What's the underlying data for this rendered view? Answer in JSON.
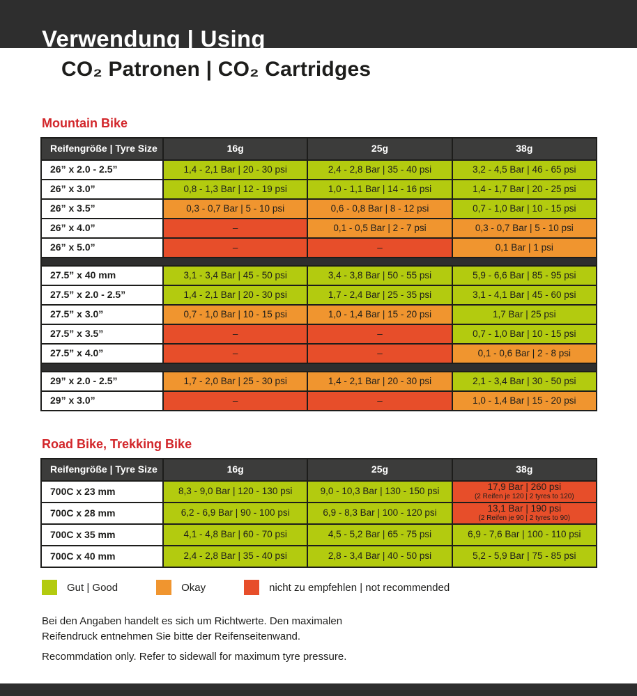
{
  "header": {
    "title": "Verwendung | Using",
    "subtitle": "CO₂ Patronen | CO₂ Cartridges"
  },
  "colors": {
    "good": "#b3cb0f",
    "okay": "#f0952f",
    "bad": "#e74e2a",
    "heading": "#d2262a",
    "band_dark": "#2e2e2e",
    "table_header": "#3c3c3b"
  },
  "tables": [
    {
      "title": "Mountain Bike",
      "columns": [
        "Reifengröße | Tyre Size",
        "16g",
        "25g",
        "38g"
      ],
      "groups": [
        {
          "rows": [
            {
              "size": "26” x 2.0 - 2.5”",
              "cells": [
                {
                  "text": "1,4 - 2,1 Bar | 20 - 30 psi",
                  "status": "good"
                },
                {
                  "text": "2,4 - 2,8 Bar | 35 - 40 psi",
                  "status": "good"
                },
                {
                  "text": "3,2 - 4,5 Bar | 46 - 65 psi",
                  "status": "good"
                }
              ]
            },
            {
              "size": "26” x 3.0”",
              "cells": [
                {
                  "text": "0,8 - 1,3 Bar | 12 - 19 psi",
                  "status": "good"
                },
                {
                  "text": "1,0 - 1,1 Bar | 14 - 16 psi",
                  "status": "good"
                },
                {
                  "text": "1,4 - 1,7 Bar | 20 - 25 psi",
                  "status": "good"
                }
              ]
            },
            {
              "size": "26” x 3.5”",
              "cells": [
                {
                  "text": "0,3 - 0,7 Bar | 5 - 10 psi",
                  "status": "okay"
                },
                {
                  "text": "0,6 - 0,8 Bar | 8 - 12 psi",
                  "status": "okay"
                },
                {
                  "text": "0,7 - 1,0 Bar | 10 - 15 psi",
                  "status": "good"
                }
              ]
            },
            {
              "size": "26” x 4.0”",
              "cells": [
                {
                  "text": "–",
                  "status": "bad"
                },
                {
                  "text": "0,1 - 0,5 Bar | 2 - 7 psi",
                  "status": "okay"
                },
                {
                  "text": "0,3 - 0,7 Bar | 5 - 10 psi",
                  "status": "okay"
                }
              ]
            },
            {
              "size": "26” x 5.0”",
              "cells": [
                {
                  "text": "–",
                  "status": "bad"
                },
                {
                  "text": "–",
                  "status": "bad"
                },
                {
                  "text": "0,1 Bar | 1 psi",
                  "status": "okay"
                }
              ]
            }
          ]
        },
        {
          "rows": [
            {
              "size": "27.5” x 40 mm",
              "cells": [
                {
                  "text": "3,1 - 3,4 Bar | 45 - 50 psi",
                  "status": "good"
                },
                {
                  "text": "3,4 - 3,8 Bar | 50 - 55 psi",
                  "status": "good"
                },
                {
                  "text": "5,9 - 6,6 Bar | 85 - 95 psi",
                  "status": "good"
                }
              ]
            },
            {
              "size": "27.5” x 2.0 - 2.5”",
              "cells": [
                {
                  "text": "1,4 - 2,1 Bar | 20 - 30 psi",
                  "status": "good"
                },
                {
                  "text": "1,7 - 2,4 Bar | 25 - 35 psi",
                  "status": "good"
                },
                {
                  "text": "3,1 - 4,1 Bar | 45 - 60 psi",
                  "status": "good"
                }
              ]
            },
            {
              "size": "27.5” x 3.0”",
              "cells": [
                {
                  "text": "0,7 - 1,0 Bar | 10 - 15 psi",
                  "status": "okay"
                },
                {
                  "text": "1,0 - 1,4 Bar | 15 - 20 psi",
                  "status": "okay"
                },
                {
                  "text": "1,7 Bar | 25 psi",
                  "status": "good"
                }
              ]
            },
            {
              "size": "27.5” x 3.5”",
              "cells": [
                {
                  "text": "–",
                  "status": "bad"
                },
                {
                  "text": "–",
                  "status": "bad"
                },
                {
                  "text": "0,7 - 1,0 Bar | 10 - 15 psi",
                  "status": "good"
                }
              ]
            },
            {
              "size": "27.5” x 4.0”",
              "cells": [
                {
                  "text": "–",
                  "status": "bad"
                },
                {
                  "text": "–",
                  "status": "bad"
                },
                {
                  "text": "0,1 - 0,6 Bar | 2 - 8 psi",
                  "status": "okay"
                }
              ]
            }
          ]
        },
        {
          "rows": [
            {
              "size": "29” x 2.0 - 2.5”",
              "cells": [
                {
                  "text": "1,7 - 2,0 Bar | 25 - 30 psi",
                  "status": "okay"
                },
                {
                  "text": "1,4 - 2,1 Bar | 20 - 30 psi",
                  "status": "okay"
                },
                {
                  "text": "2,1 - 3,4 Bar | 30 - 50 psi",
                  "status": "good"
                }
              ]
            },
            {
              "size": "29” x 3.0”",
              "cells": [
                {
                  "text": "–",
                  "status": "bad"
                },
                {
                  "text": "–",
                  "status": "bad"
                },
                {
                  "text": "1,0 - 1,4 Bar | 15 - 20 psi",
                  "status": "okay"
                }
              ]
            }
          ]
        }
      ]
    },
    {
      "title": "Road Bike, Trekking Bike",
      "columns": [
        "Reifengröße | Tyre Size",
        "16g",
        "25g",
        "38g"
      ],
      "groups": [
        {
          "rows": [
            {
              "size": "700C x 23 mm",
              "cells": [
                {
                  "text": "8,3 - 9,0 Bar | 120 - 130 psi",
                  "status": "good"
                },
                {
                  "text": "9,0 - 10,3 Bar | 130 - 150 psi",
                  "status": "good"
                },
                {
                  "text": "17,9 Bar | 260 psi",
                  "sub": "(2 Reifen je 120 | 2 tyres to 120)",
                  "status": "bad"
                }
              ]
            },
            {
              "size": "700C x 28 mm",
              "cells": [
                {
                  "text": "6,2 - 6,9 Bar | 90 - 100 psi",
                  "status": "good"
                },
                {
                  "text": "6,9 - 8,3 Bar | 100 - 120 psi",
                  "status": "good"
                },
                {
                  "text": "13,1 Bar | 190 psi",
                  "sub": "(2 Reifen je 90 | 2 tyres to 90)",
                  "status": "bad"
                }
              ]
            },
            {
              "size": "700C x 35 mm",
              "cells": [
                {
                  "text": "4,1 - 4,8 Bar | 60 - 70 psi",
                  "status": "good"
                },
                {
                  "text": "4,5 - 5,2 Bar | 65 - 75 psi",
                  "status": "good"
                },
                {
                  "text": "6,9 - 7,6 Bar | 100 - 110 psi",
                  "status": "good"
                }
              ]
            },
            {
              "size": "700C x 40 mm",
              "cells": [
                {
                  "text": "2,4 - 2,8 Bar | 35 - 40 psi",
                  "status": "good"
                },
                {
                  "text": "2,8 - 3,4 Bar | 40 - 50 psi",
                  "status": "good"
                },
                {
                  "text": "5,2 - 5,9 Bar | 75 - 85 psi",
                  "status": "good"
                }
              ]
            }
          ]
        }
      ]
    }
  ],
  "legend": {
    "items": [
      {
        "label": "Gut | Good",
        "status": "good"
      },
      {
        "label": "Okay",
        "status": "okay"
      },
      {
        "label": "nicht zu empfehlen | not recommended",
        "status": "bad"
      }
    ]
  },
  "notes": [
    "Bei den Angaben handelt es sich um Richtwerte. Den maximalen\nReifendruck entnehmen Sie bitte der Reifenseitenwand.",
    "Recommdation only. Refer to sidewall for maximum tyre pressure."
  ]
}
